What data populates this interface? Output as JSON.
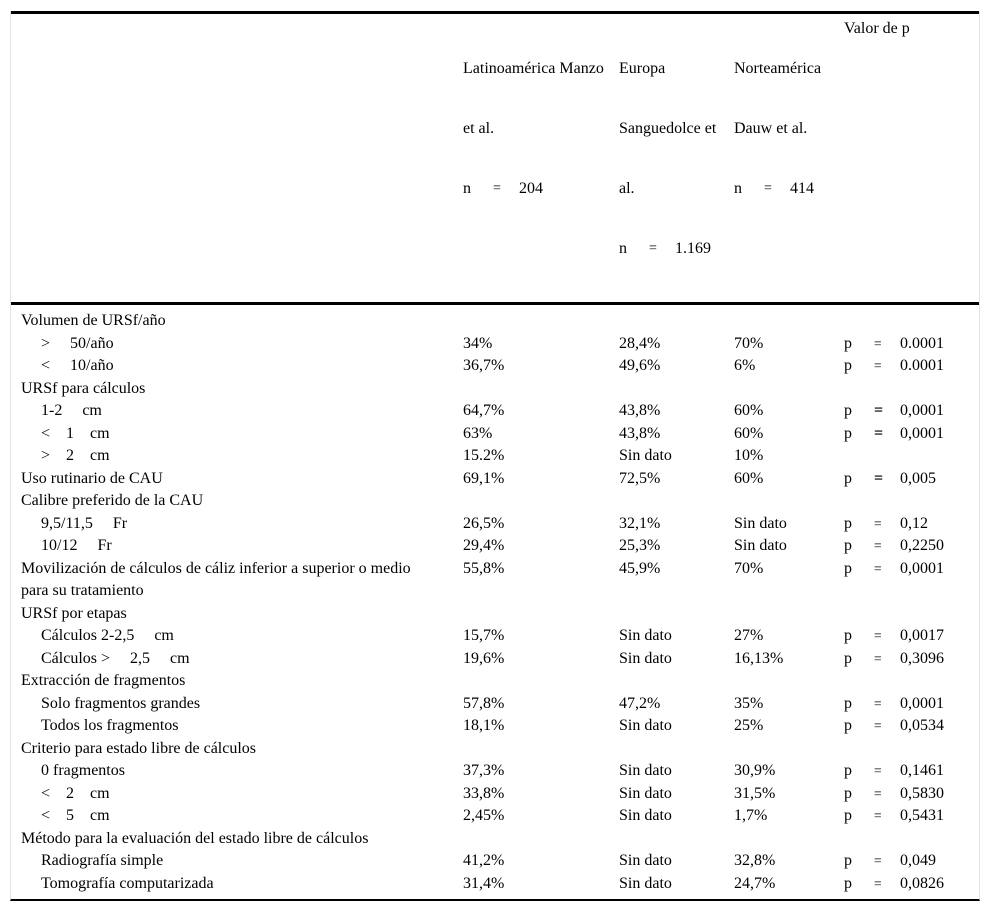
{
  "table": {
    "p_prefix": "p",
    "eq_sign": "=",
    "header": {
      "col_label": "",
      "p_col_title": "Valor de p",
      "cols": [
        {
          "lines": [
            "Latinoamérica Manzo",
            "et al."
          ],
          "n_label": "n",
          "eq": "=",
          "n_value": "204"
        },
        {
          "lines": [
            "Europa",
            "Sanguedolce et",
            "al."
          ],
          "n_label": "n",
          "eq": "=",
          "n_value": "1.169"
        },
        {
          "lines": [
            "Norteamérica",
            "Dauw et al."
          ],
          "n_label": "n",
          "eq": "=",
          "n_value": "414"
        }
      ]
    },
    "rows": [
      {
        "label": "Volumen de URSf/año",
        "indent": 0,
        "v1": "",
        "v2": "",
        "v3": "",
        "p": "",
        "eq_bold": false
      },
      {
        "label": ">     50/año",
        "indent": 1,
        "v1": "34%",
        "v2": "28,4%",
        "v3": "70%",
        "p": "0.0001",
        "eq_bold": false
      },
      {
        "label": "<     10/año",
        "indent": 1,
        "v1": "36,7%",
        "v2": "49,6%",
        "v3": "6%",
        "p": "0.0001",
        "eq_bold": false
      },
      {
        "label": "URSf para cálculos",
        "indent": 0,
        "v1": "",
        "v2": "",
        "v3": "",
        "p": "",
        "eq_bold": false
      },
      {
        "label": "1-2     cm",
        "indent": 1,
        "v1": "64,7%",
        "v2": "43,8%",
        "v3": "60%",
        "p": "0,0001",
        "eq_bold": true
      },
      {
        "label": "<    1    cm",
        "indent": 1,
        "v1": "63%",
        "v2": "43,8%",
        "v3": "60%",
        "p": "0,0001",
        "eq_bold": true
      },
      {
        "label": ">    2    cm",
        "indent": 1,
        "v1": "15.2%",
        "v2": "Sin dato",
        "v3": "10%",
        "p": "",
        "eq_bold": false
      },
      {
        "label": "Uso rutinario de CAU",
        "indent": 0,
        "v1": "69,1%",
        "v2": "72,5%",
        "v3": "60%",
        "p": "0,005",
        "eq_bold": true
      },
      {
        "label": "Calibre preferido de la CAU",
        "indent": 0,
        "v1": "",
        "v2": "",
        "v3": "",
        "p": "",
        "eq_bold": false
      },
      {
        "label": "9,5/11,5     Fr",
        "indent": 1,
        "v1": "26,5%",
        "v2": "32,1%",
        "v3": "Sin dato",
        "p": "0,12",
        "eq_bold": false
      },
      {
        "label": "10/12     Fr",
        "indent": 1,
        "v1": "29,4%",
        "v2": "25,3%",
        "v3": "Sin dato",
        "p": "0,2250",
        "eq_bold": false
      },
      {
        "label": "Movilización de cálculos de cáliz inferior a superior o medio\npara su tratamiento",
        "indent": 0,
        "v1": "55,8%",
        "v2": "45,9%",
        "v3": "70%",
        "p": "0,0001",
        "eq_bold": false
      },
      {
        "label": "URSf por etapas",
        "indent": 0,
        "v1": "",
        "v2": "",
        "v3": "",
        "p": "",
        "eq_bold": false
      },
      {
        "label": "Cálculos 2-2,5     cm",
        "indent": 1,
        "v1": "15,7%",
        "v2": "Sin dato",
        "v3": "27%",
        "p": "0,0017",
        "eq_bold": false
      },
      {
        "label": "Cálculos >     2,5     cm",
        "indent": 1,
        "v1": "19,6%",
        "v2": "Sin dato",
        "v3": "16,13%",
        "p": "0,3096",
        "eq_bold": false
      },
      {
        "label": "Extracción de fragmentos",
        "indent": 0,
        "v1": "",
        "v2": "",
        "v3": "",
        "p": "",
        "eq_bold": false
      },
      {
        "label": "Solo fragmentos grandes",
        "indent": 1,
        "v1": "57,8%",
        "v2": "47,2%",
        "v3": "35%",
        "p": "0,0001",
        "eq_bold": false
      },
      {
        "label": "Todos los fragmentos",
        "indent": 1,
        "v1": "18,1%",
        "v2": "Sin dato",
        "v3": "25%",
        "p": "0,0534",
        "eq_bold": false
      },
      {
        "label": "Criterio para estado libre de cálculos",
        "indent": 0,
        "v1": "",
        "v2": "",
        "v3": "",
        "p": "",
        "eq_bold": false
      },
      {
        "label": "0 fragmentos",
        "indent": 1,
        "v1": "37,3%",
        "v2": "Sin dato",
        "v3": "30,9%",
        "p": "0,1461",
        "eq_bold": false
      },
      {
        "label": "<    2    cm",
        "indent": 1,
        "v1": "33,8%",
        "v2": "Sin dato",
        "v3": "31,5%",
        "p": "0,5830",
        "eq_bold": false
      },
      {
        "label": "<    5    cm",
        "indent": 1,
        "v1": "2,45%",
        "v2": "Sin dato",
        "v3": "1,7%",
        "p": "0,5431",
        "eq_bold": false
      },
      {
        "label": "Método para la evaluación del estado libre de cálculos",
        "indent": 0,
        "v1": "",
        "v2": "",
        "v3": "",
        "p": "",
        "eq_bold": false
      },
      {
        "label": "Radiografía simple",
        "indent": 1,
        "v1": "41,2%",
        "v2": "Sin dato",
        "v3": "32,8%",
        "p": "0,049",
        "eq_bold": false
      },
      {
        "label": "Tomografía computarizada",
        "indent": 1,
        "v1": "31,4%",
        "v2": "Sin dato",
        "v3": "24,7%",
        "p": "0,0826",
        "eq_bold": false
      }
    ]
  }
}
